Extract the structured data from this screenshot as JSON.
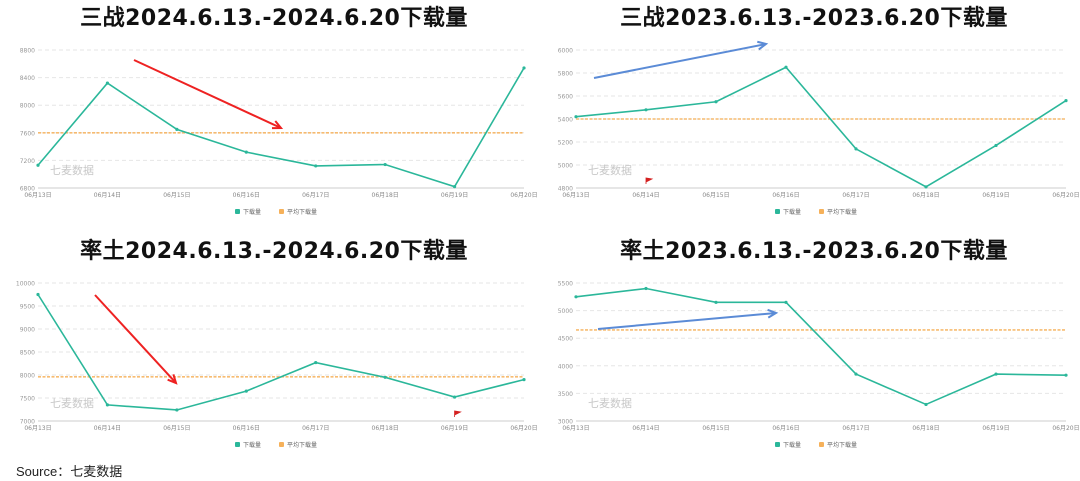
{
  "source": "Source：七麦数据",
  "colors": {
    "line": "#2bb79a",
    "avg": "#f6b15a",
    "grid": "#e6e6e6",
    "arrow_red": "#ee2222",
    "arrow_blue": "#5b8bd6",
    "watermark": "#c8c8c8"
  },
  "legend": {
    "download": "下载量",
    "avg": "平均下载量"
  },
  "watermark": "七麦数据",
  "chart_data": [
    {
      "type": "line",
      "title": "三战2024.6.13.-2024.6.20下载量",
      "categories": [
        "06月13日",
        "06月14日",
        "06月15日",
        "06月16日",
        "06月17日",
        "06月18日",
        "06月19日",
        "06月20日"
      ],
      "series": [
        {
          "name": "下载量",
          "values": [
            7130,
            8320,
            7650,
            7320,
            7120,
            7140,
            6820,
            8540
          ]
        }
      ],
      "avg_line": 7600,
      "yticks": [
        6800,
        7200,
        7600,
        8000,
        8400,
        8800
      ],
      "ylim": [
        6800,
        8800
      ],
      "arrow": "red-down",
      "flag_at": null
    },
    {
      "type": "line",
      "title": "三战2023.6.13.-2023.6.20下载量",
      "categories": [
        "06月13日",
        "06月14日",
        "06月15日",
        "06月16日",
        "06月17日",
        "06月18日",
        "06月19日",
        "06月20日"
      ],
      "series": [
        {
          "name": "下载量",
          "values": [
            5420,
            5480,
            5550,
            5850,
            5140,
            4810,
            5170,
            5560
          ]
        }
      ],
      "avg_line": 5400,
      "yticks": [
        4800,
        5000,
        5200,
        5400,
        5600,
        5800,
        6000
      ],
      "ylim": [
        4800,
        6000
      ],
      "arrow": "blue-up",
      "flag_at": 1
    },
    {
      "type": "line",
      "title": "率土2024.6.13.-2024.6.20下载量",
      "categories": [
        "06月13日",
        "06月14日",
        "06月15日",
        "06月16日",
        "06月17日",
        "06月18日",
        "06月19日",
        "06月20日"
      ],
      "series": [
        {
          "name": "下载量",
          "values": [
            9750,
            7350,
            7240,
            7650,
            8270,
            7950,
            7520,
            7900
          ]
        }
      ],
      "avg_line": 7960,
      "yticks": [
        7000,
        7500,
        8000,
        8500,
        9000,
        9500,
        10000
      ],
      "ylim": [
        7000,
        10000
      ],
      "arrow": "red-down",
      "flag_at": 6
    },
    {
      "type": "line",
      "title": "率土2023.6.13.-2023.6.20下载量",
      "categories": [
        "06月13日",
        "06月14日",
        "06月15日",
        "06月16日",
        "06月17日",
        "06月18日",
        "06月19日",
        "06月20日"
      ],
      "series": [
        {
          "name": "下载量",
          "values": [
            5250,
            5400,
            5150,
            5150,
            3850,
            3300,
            3850,
            3830
          ]
        }
      ],
      "avg_line": 4650,
      "yticks": [
        3000,
        3500,
        4000,
        4500,
        5000,
        5500
      ],
      "ylim": [
        3000,
        5500
      ],
      "arrow": "blue-up",
      "flag_at": null
    }
  ]
}
